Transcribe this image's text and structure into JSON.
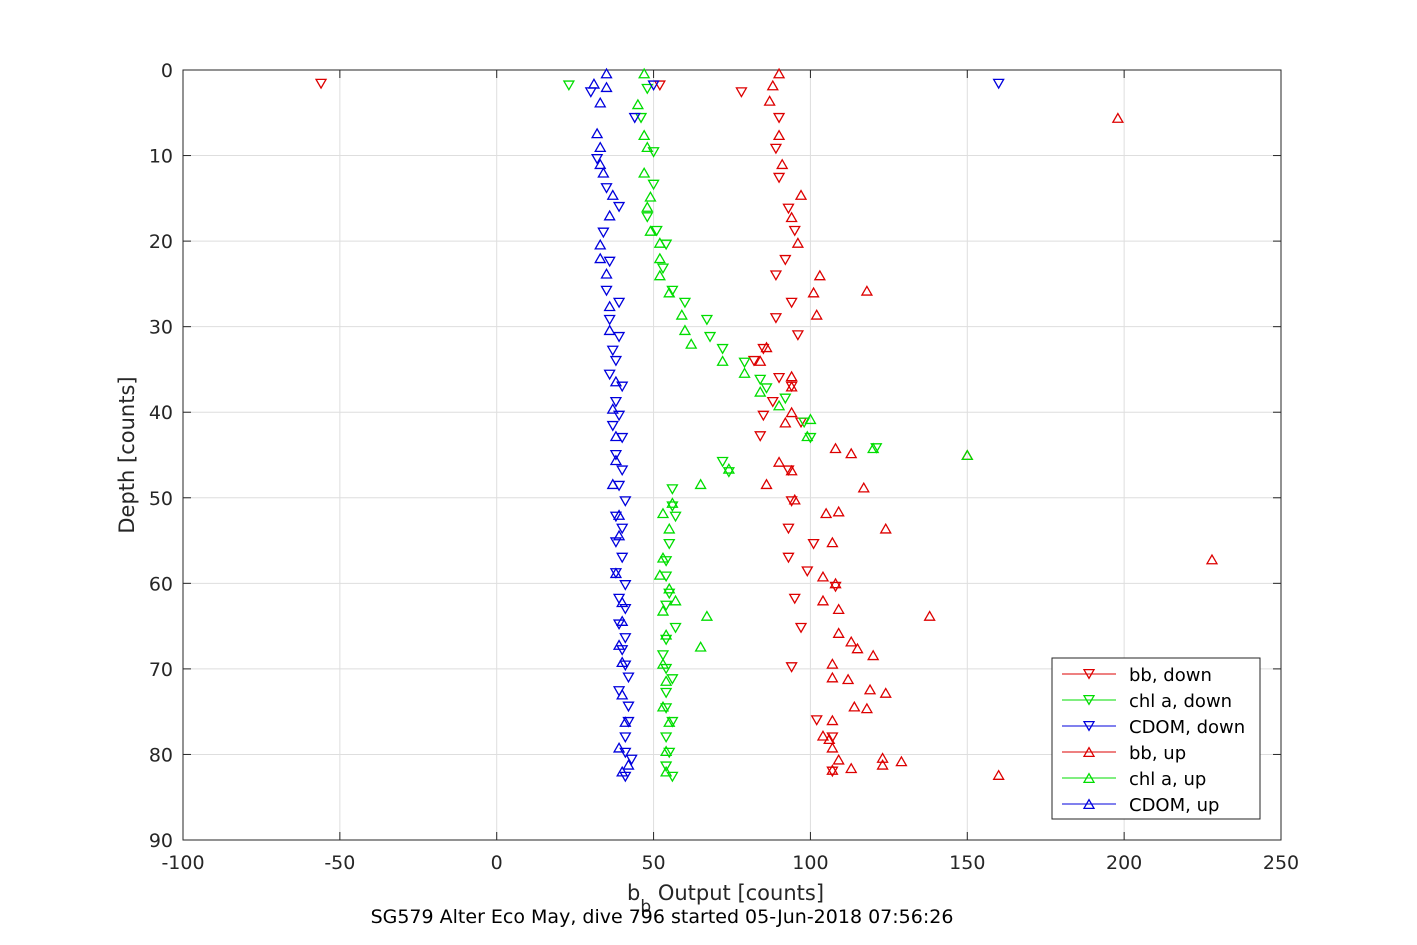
{
  "chart_data": {
    "type": "scatter",
    "title": "",
    "xlabel_main": "b",
    "xlabel_sub": "b",
    "xlabel_rest": " Output [counts]",
    "ylabel": "Depth [counts]",
    "caption": "SG579 Alter Eco May, dive 796 started 05-Jun-2018 07:56:26",
    "xlim": [
      -100,
      250
    ],
    "ylim": [
      0,
      90
    ],
    "y_reversed": true,
    "xticks": [
      -100,
      -50,
      0,
      50,
      100,
      150,
      200,
      250
    ],
    "yticks": [
      0,
      10,
      20,
      30,
      40,
      50,
      60,
      70,
      80,
      90
    ],
    "grid": true,
    "legend_position": "bottom-right",
    "series": [
      {
        "name": "bb, down",
        "color": "#dd0000",
        "marker": "triangle-down",
        "points": [
          [
            -56,
            1.6
          ],
          [
            52,
            1.8
          ],
          [
            78,
            2.6
          ],
          [
            90,
            5.6
          ],
          [
            89,
            9.2
          ],
          [
            90,
            12.6
          ],
          [
            93,
            16.2
          ],
          [
            95,
            18.8
          ],
          [
            92,
            22.2
          ],
          [
            89,
            24
          ],
          [
            94,
            27.2
          ],
          [
            89,
            29
          ],
          [
            96,
            31
          ],
          [
            85,
            32.6
          ],
          [
            82,
            34
          ],
          [
            90,
            36
          ],
          [
            94,
            37
          ],
          [
            88,
            38.8
          ],
          [
            85,
            40.4
          ],
          [
            97,
            41.2
          ],
          [
            84,
            42.8
          ],
          [
            93,
            46.8
          ],
          [
            94,
            50.4
          ],
          [
            93,
            53.6
          ],
          [
            101,
            55.4
          ],
          [
            93,
            57
          ],
          [
            99,
            58.6
          ],
          [
            95,
            61.8
          ],
          [
            108,
            60.4
          ],
          [
            97,
            65.2
          ],
          [
            94,
            69.8
          ],
          [
            102,
            76
          ],
          [
            107,
            78
          ],
          [
            107,
            82
          ]
        ]
      },
      {
        "name": "chl a, down",
        "color": "#00dd00",
        "marker": "triangle-down",
        "points": [
          [
            23,
            1.8
          ],
          [
            48,
            2.2
          ],
          [
            46,
            5.6
          ],
          [
            50,
            9.6
          ],
          [
            50,
            13.4
          ],
          [
            48,
            17.2
          ],
          [
            51,
            18.8
          ],
          [
            54,
            20.4
          ],
          [
            53,
            23.2
          ],
          [
            56,
            25.8
          ],
          [
            60,
            27.2
          ],
          [
            67,
            29.2
          ],
          [
            68,
            31.2
          ],
          [
            72,
            32.6
          ],
          [
            79,
            34.2
          ],
          [
            84,
            36.2
          ],
          [
            86,
            37.2
          ],
          [
            92,
            38.4
          ],
          [
            98,
            41.2
          ],
          [
            100,
            43
          ],
          [
            121,
            44.2
          ],
          [
            72,
            45.8
          ],
          [
            74,
            47
          ],
          [
            56,
            49
          ],
          [
            56,
            51
          ],
          [
            57,
            52.2
          ],
          [
            55,
            55.4
          ],
          [
            54,
            57.4
          ],
          [
            54,
            59.2
          ],
          [
            55,
            61.2
          ],
          [
            54,
            62.6
          ],
          [
            57,
            65.2
          ],
          [
            54,
            66.6
          ],
          [
            53,
            68.4
          ],
          [
            54,
            70
          ],
          [
            56,
            71.2
          ],
          [
            54,
            72.8
          ],
          [
            54,
            74.6
          ],
          [
            56,
            76.2
          ],
          [
            54,
            78
          ],
          [
            55,
            79.8
          ],
          [
            54,
            81.4
          ],
          [
            56,
            82.6
          ]
        ]
      },
      {
        "name": "CDOM, down",
        "color": "#0000dd",
        "marker": "triangle-down",
        "points": [
          [
            30,
            2.6
          ],
          [
            50,
            1.8
          ],
          [
            160,
            1.6
          ],
          [
            44,
            5.6
          ],
          [
            32,
            10.4
          ],
          [
            35,
            13.8
          ],
          [
            39,
            16
          ],
          [
            34,
            19
          ],
          [
            36,
            22.4
          ],
          [
            35,
            25.8
          ],
          [
            39,
            27.2
          ],
          [
            36,
            29.2
          ],
          [
            39,
            31.2
          ],
          [
            37,
            32.8
          ],
          [
            38,
            34
          ],
          [
            36,
            35.6
          ],
          [
            40,
            37
          ],
          [
            38,
            38.8
          ],
          [
            39,
            40.4
          ],
          [
            37,
            41.6
          ],
          [
            40,
            43
          ],
          [
            38,
            45
          ],
          [
            40,
            46.8
          ],
          [
            39,
            48.6
          ],
          [
            41,
            50.4
          ],
          [
            38,
            52.2
          ],
          [
            40,
            53.6
          ],
          [
            38,
            55.2
          ],
          [
            40,
            57
          ],
          [
            38,
            58.8
          ],
          [
            41,
            60.2
          ],
          [
            39,
            61.8
          ],
          [
            41,
            63
          ],
          [
            39,
            64.8
          ],
          [
            41,
            66.4
          ],
          [
            40,
            67.8
          ],
          [
            41,
            69.6
          ],
          [
            42,
            71
          ],
          [
            39,
            72.6
          ],
          [
            42,
            74.4
          ],
          [
            42,
            76.2
          ],
          [
            41,
            78
          ],
          [
            41,
            79.8
          ],
          [
            43,
            80.6
          ],
          [
            41,
            82.6
          ]
        ]
      },
      {
        "name": "bb, up",
        "color": "#dd0000",
        "marker": "triangle-up",
        "points": [
          [
            90,
            0.4
          ],
          [
            88,
            1.8
          ],
          [
            87,
            3.6
          ],
          [
            90,
            7.6
          ],
          [
            91,
            11
          ],
          [
            97,
            14.6
          ],
          [
            94,
            17.2
          ],
          [
            96,
            20.2
          ],
          [
            103,
            24
          ],
          [
            101,
            26
          ],
          [
            118,
            25.8
          ],
          [
            102,
            28.6
          ],
          [
            86,
            32.4
          ],
          [
            84,
            34
          ],
          [
            94,
            35.8
          ],
          [
            94,
            37
          ],
          [
            94,
            40
          ],
          [
            92,
            41.2
          ],
          [
            90,
            45.8
          ],
          [
            94,
            46.8
          ],
          [
            86,
            48.4
          ],
          [
            95,
            50.2
          ],
          [
            105,
            51.8
          ],
          [
            109,
            51.6
          ],
          [
            113,
            44.8
          ],
          [
            108,
            44.2
          ],
          [
            117,
            48.8
          ],
          [
            124,
            53.6
          ],
          [
            107,
            55.2
          ],
          [
            104,
            59.2
          ],
          [
            108,
            60
          ],
          [
            109,
            63
          ],
          [
            104,
            62
          ],
          [
            138,
            63.8
          ],
          [
            109,
            65.8
          ],
          [
            113,
            66.8
          ],
          [
            115,
            67.6
          ],
          [
            120,
            68.4
          ],
          [
            107,
            69.4
          ],
          [
            107,
            71
          ],
          [
            112,
            71.2
          ],
          [
            119,
            72.4
          ],
          [
            124,
            72.8
          ],
          [
            114,
            74.4
          ],
          [
            118,
            74.6
          ],
          [
            107,
            76
          ],
          [
            104,
            77.8
          ],
          [
            106,
            78.2
          ],
          [
            107,
            79.2
          ],
          [
            109,
            80.6
          ],
          [
            123,
            80.4
          ],
          [
            129,
            80.8
          ],
          [
            123,
            81.2
          ],
          [
            113,
            81.6
          ],
          [
            107,
            81.8
          ],
          [
            160,
            82.4
          ],
          [
            198,
            5.6
          ],
          [
            228,
            57.2
          ],
          [
            150,
            45
          ]
        ]
      },
      {
        "name": "chl a, up",
        "color": "#00dd00",
        "marker": "triangle-up",
        "points": [
          [
            47,
            0.4
          ],
          [
            45,
            4
          ],
          [
            47,
            7.6
          ],
          [
            48,
            9
          ],
          [
            47,
            12
          ],
          [
            49,
            14.8
          ],
          [
            48,
            16
          ],
          [
            49,
            18.8
          ],
          [
            52,
            20.2
          ],
          [
            52,
            22
          ],
          [
            52,
            24
          ],
          [
            55,
            26
          ],
          [
            59,
            28.6
          ],
          [
            60,
            30.4
          ],
          [
            62,
            32
          ],
          [
            72,
            34
          ],
          [
            79,
            35.4
          ],
          [
            84,
            37.6
          ],
          [
            90,
            39.2
          ],
          [
            100,
            40.8
          ],
          [
            99,
            42.8
          ],
          [
            120,
            44.2
          ],
          [
            150,
            45
          ],
          [
            74,
            46.6
          ],
          [
            65,
            48.4
          ],
          [
            56,
            50.6
          ],
          [
            53,
            51.8
          ],
          [
            55,
            53.6
          ],
          [
            53,
            57
          ],
          [
            52,
            59
          ],
          [
            55,
            60.6
          ],
          [
            57,
            62
          ],
          [
            53,
            63.2
          ],
          [
            67,
            63.8
          ],
          [
            54,
            66
          ],
          [
            65,
            67.4
          ],
          [
            53,
            69.4
          ],
          [
            54,
            71.4
          ],
          [
            53,
            74.4
          ],
          [
            55,
            76.2
          ],
          [
            54,
            79.6
          ],
          [
            54,
            82
          ]
        ]
      },
      {
        "name": "CDOM, up",
        "color": "#0000dd",
        "marker": "triangle-up",
        "points": [
          [
            35,
            0.4
          ],
          [
            31,
            1.6
          ],
          [
            35,
            2
          ],
          [
            33,
            3.8
          ],
          [
            32,
            7.4
          ],
          [
            33,
            9
          ],
          [
            33,
            11
          ],
          [
            34,
            12
          ],
          [
            37,
            14.6
          ],
          [
            36,
            17
          ],
          [
            33,
            20.4
          ],
          [
            33,
            22
          ],
          [
            35,
            23.8
          ],
          [
            36,
            27.6
          ],
          [
            36,
            30.4
          ],
          [
            38,
            36.4
          ],
          [
            37,
            39.6
          ],
          [
            38,
            42.8
          ],
          [
            38,
            45.6
          ],
          [
            37,
            48.4
          ],
          [
            39,
            52
          ],
          [
            39,
            54.4
          ],
          [
            38,
            58.8
          ],
          [
            40,
            62.2
          ],
          [
            40,
            64.4
          ],
          [
            39,
            67.2
          ],
          [
            40,
            69.2
          ],
          [
            40,
            73
          ],
          [
            41,
            76.2
          ],
          [
            39,
            79.2
          ],
          [
            42,
            81.2
          ],
          [
            40,
            82
          ]
        ]
      }
    ]
  }
}
